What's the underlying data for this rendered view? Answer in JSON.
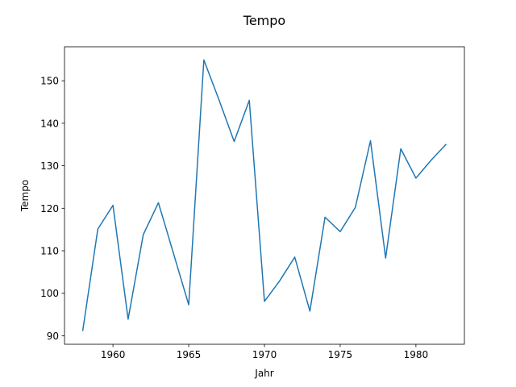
{
  "chart_data": {
    "type": "line",
    "title": "Tempo",
    "xlabel": "Jahr",
    "ylabel": "Tempo",
    "xlim": [
      1956.8,
      1983.2
    ],
    "ylim": [
      88.0,
      158.0
    ],
    "xticks": [
      1960,
      1965,
      1970,
      1975,
      1980
    ],
    "yticks": [
      90,
      100,
      110,
      120,
      130,
      140,
      150
    ],
    "grid": false,
    "color": "#1f77b4",
    "x": [
      1958,
      1959,
      1960,
      1961,
      1962,
      1963,
      1964,
      1965,
      1966,
      1967,
      1968,
      1969,
      1970,
      1971,
      1972,
      1973,
      1974,
      1975,
      1976,
      1977,
      1978,
      1979,
      1980,
      1981,
      1982
    ],
    "series": [
      {
        "values": [
          91.1,
          115.1,
          120.7,
          93.9,
          113.8,
          121.3,
          109.3,
          97.3,
          154.9,
          145.5,
          135.7,
          145.4,
          98.1,
          102.9,
          108.5,
          95.8,
          117.9,
          114.5,
          120.2,
          135.9,
          108.3,
          134.0,
          127.1,
          131.3,
          135.1
        ]
      }
    ]
  }
}
